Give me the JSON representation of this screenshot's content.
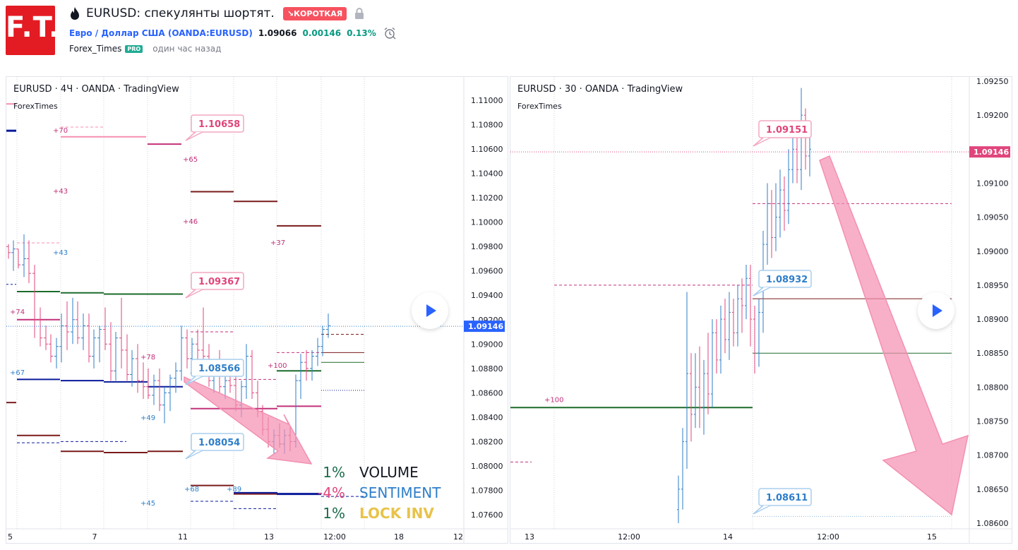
{
  "header": {
    "logo_text": "F.T.",
    "title": "EURUSD: спекулянты шортят.",
    "badge": "↘КОРОТКАЯ",
    "symbol_name": "Евро / Доллар США (OANDA:EURUSD)",
    "price": "1.09066",
    "change": "0.00146",
    "change_pct": "0.13%",
    "author": "Forex_Times",
    "pro_badge": "PRO",
    "time_ago": "один час назад"
  },
  "left_chart": {
    "legend_title": "EURUSD · 4Ч · OANDA · TradingView",
    "legend_sub": "ForexTimes",
    "price_axis": [
      "1.11000",
      "1.10800",
      "1.10600",
      "1.10400",
      "1.10200",
      "1.10000",
      "1.09800",
      "1.09600",
      "1.09400",
      "1.09200",
      "1.09000",
      "1.08800",
      "1.08600",
      "1.08400",
      "1.08200",
      "1.08000",
      "1.07800",
      "1.07600"
    ],
    "time_axis": [
      "5",
      "7",
      "11",
      "13",
      "12:00",
      "18",
      "12"
    ],
    "current_price": "1.09146",
    "callouts": [
      "1.10658",
      "1.09367",
      "1.08566",
      "1.08054"
    ],
    "level_labels": [
      "+70",
      "+65",
      "+43",
      "+46",
      "+37",
      "+43",
      "+74",
      "+67",
      "+78",
      "+100",
      "+49",
      "+68",
      "+89",
      "+45"
    ],
    "stats": [
      {
        "pct": "1%",
        "label": "VOLUME",
        "pct_color": "#1b6b4a",
        "label_color": "#131722"
      },
      {
        "pct": "-4%",
        "label": "SENTIMENT",
        "pct_color": "#e0457b",
        "label_color": "#2e7ec9"
      },
      {
        "pct": "1%",
        "label": "LOCK INV",
        "pct_color": "#1b6b4a",
        "label_color": "#e8c34a"
      }
    ]
  },
  "right_chart": {
    "legend_title": "EURUSD · 30 · OANDA · TradingView",
    "legend_sub": "ForexTimes",
    "price_axis": [
      "1.09250",
      "1.09200",
      "1.09150",
      "1.09100",
      "1.09050",
      "1.09000",
      "1.08950",
      "1.08900",
      "1.08850",
      "1.08800",
      "1.08750",
      "1.08700",
      "1.08650",
      "1.08600"
    ],
    "time_axis": [
      "13",
      "12:00",
      "14",
      "12:00",
      "15"
    ],
    "current_price": "1.09146",
    "callouts": [
      "1.09151",
      "1.08932",
      "1.08611"
    ],
    "level_labels": [
      "+100"
    ]
  },
  "colors": {
    "up": "#2e7ec9",
    "down": "#e0457b",
    "accent_pink": "#f48fb1",
    "dark_green": "#1b6b2a",
    "dark_red": "#7a1a1a",
    "navy": "#0a1a9a"
  }
}
